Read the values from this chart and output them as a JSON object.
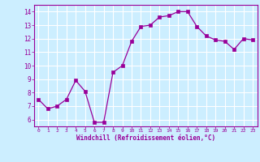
{
  "x": [
    0,
    1,
    2,
    3,
    4,
    5,
    6,
    7,
    8,
    9,
    10,
    11,
    12,
    13,
    14,
    15,
    16,
    17,
    18,
    19,
    20,
    21,
    22,
    23
  ],
  "y": [
    7.5,
    6.8,
    7.0,
    7.5,
    8.9,
    8.1,
    5.8,
    5.8,
    9.5,
    10.0,
    11.8,
    12.9,
    13.0,
    13.6,
    13.7,
    14.0,
    14.0,
    12.9,
    12.2,
    11.9,
    11.8,
    11.2,
    12.0,
    11.9
  ],
  "line_color": "#990099",
  "marker": "s",
  "marker_size": 2.5,
  "bg_color": "#cceeff",
  "grid_color": "#ffffff",
  "xlabel": "Windchill (Refroidissement éolien,°C)",
  "xlabel_color": "#990099",
  "tick_color": "#990099",
  "xlim": [
    -0.5,
    23.5
  ],
  "ylim": [
    5.5,
    14.5
  ],
  "yticks": [
    6,
    7,
    8,
    9,
    10,
    11,
    12,
    13,
    14
  ],
  "xticks": [
    0,
    1,
    2,
    3,
    4,
    5,
    6,
    7,
    8,
    9,
    10,
    11,
    12,
    13,
    14,
    15,
    16,
    17,
    18,
    19,
    20,
    21,
    22,
    23
  ]
}
